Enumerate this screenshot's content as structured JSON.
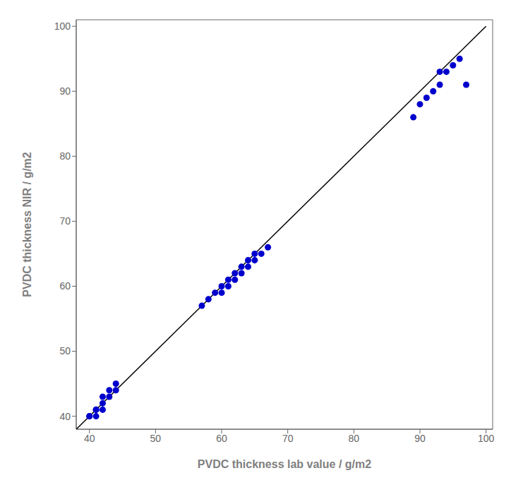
{
  "chart_data": {
    "type": "scatter",
    "xlabel": "PVDC thickness lab value / g/m2",
    "ylabel": "PVDC thickness NIR / g/m2",
    "xlim": [
      38,
      101
    ],
    "ylim": [
      38,
      101
    ],
    "xticks": [
      40,
      50,
      60,
      70,
      80,
      90,
      100
    ],
    "yticks": [
      40,
      50,
      60,
      70,
      80,
      90,
      100
    ],
    "grid": false,
    "series": [
      {
        "type": "line",
        "color": "#000000",
        "x": [
          38,
          100
        ],
        "values": [
          38,
          100
        ]
      },
      {
        "type": "scatter",
        "color": "#0000CD",
        "x": [
          40,
          40,
          41,
          41,
          41,
          42,
          42,
          42,
          43,
          43,
          44,
          44,
          57,
          58,
          59,
          60,
          60,
          61,
          61,
          62,
          62,
          63,
          63,
          64,
          64,
          65,
          65,
          66,
          67,
          89,
          90,
          91,
          92,
          93,
          93,
          94,
          95,
          96,
          97
        ],
        "values": [
          40,
          40,
          40,
          41,
          41,
          41,
          42,
          43,
          43,
          44,
          44,
          45,
          57,
          58,
          59,
          59,
          60,
          60,
          61,
          61,
          62,
          62,
          63,
          63,
          64,
          64,
          65,
          65,
          66,
          86,
          88,
          89,
          90,
          91,
          93,
          93,
          94,
          95,
          91
        ]
      }
    ]
  }
}
